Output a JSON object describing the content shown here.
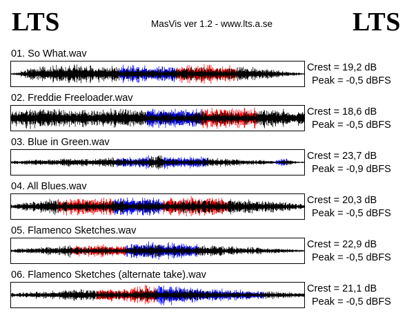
{
  "window": {
    "logo_left": "LTS",
    "logo_right": "LTS",
    "title": "MasVis ver 1.2 - www.lts.a.se"
  },
  "colors": {
    "left_channel": "#0000ff",
    "right_channel": "#ff0000",
    "mono": "#000000"
  },
  "tracks": [
    {
      "title": "01. So What.wav",
      "crest": "Crest = 19,2 dB",
      "peak": "Peak = -0,5 dBFS",
      "envelope": [
        0.08,
        0.12,
        0.2,
        0.3,
        0.4,
        0.5,
        0.55,
        0.6,
        0.65,
        0.7,
        0.72,
        0.75,
        0.78,
        0.8,
        0.82,
        0.85,
        0.86,
        0.85,
        0.84,
        0.82,
        0.8,
        0.78,
        0.75,
        0.72,
        0.7,
        0.68,
        0.7,
        0.72,
        0.74,
        0.76,
        0.78,
        0.8,
        0.82,
        0.83,
        0.82,
        0.8,
        0.78,
        0.76,
        0.74,
        0.72,
        0.72,
        0.74,
        0.76,
        0.78,
        0.8,
        0.82,
        0.84,
        0.86,
        0.88,
        0.9,
        0.92,
        0.93,
        0.92,
        0.9,
        0.88,
        0.85,
        0.82,
        0.8,
        0.78,
        0.75,
        0.72,
        0.7,
        0.68,
        0.65,
        0.62,
        0.58,
        0.55,
        0.52,
        0.5,
        0.46,
        0.42,
        0.38,
        0.34,
        0.3,
        0.26,
        0.22,
        0.18,
        0.15,
        0.12,
        0.08
      ],
      "segments": [
        {
          "from": 0.0,
          "to": 0.37,
          "channel": "mono"
        },
        {
          "from": 0.37,
          "to": 0.56,
          "channel": "left"
        },
        {
          "from": 0.56,
          "to": 0.77,
          "channel": "right"
        },
        {
          "from": 0.77,
          "to": 1.0,
          "channel": "mono"
        }
      ]
    },
    {
      "title": "02. Freddie Freeloader.wav",
      "crest": "Crest = 18,6 dB",
      "peak": "Peak = -0,5 dBFS",
      "envelope": [
        0.6,
        0.7,
        0.78,
        0.82,
        0.85,
        0.88,
        0.9,
        0.9,
        0.88,
        0.86,
        0.85,
        0.84,
        0.83,
        0.82,
        0.82,
        0.8,
        0.8,
        0.8,
        0.78,
        0.78,
        0.78,
        0.76,
        0.78,
        0.8,
        0.8,
        0.8,
        0.82,
        0.84,
        0.85,
        0.86,
        0.86,
        0.86,
        0.85,
        0.84,
        0.84,
        0.84,
        0.85,
        0.86,
        0.87,
        0.88,
        0.88,
        0.88,
        0.86,
        0.85,
        0.84,
        0.85,
        0.86,
        0.88,
        0.9,
        0.92,
        0.94,
        0.95,
        0.95,
        0.95,
        0.94,
        0.94,
        0.94,
        0.93,
        0.93,
        0.93,
        0.92,
        0.92,
        0.92,
        0.9,
        0.9,
        0.88,
        0.88,
        0.87,
        0.86,
        0.85,
        0.84,
        0.82,
        0.8,
        0.78,
        0.76,
        0.74,
        0.72,
        0.7,
        0.68,
        0.66
      ],
      "segments": [
        {
          "from": 0.0,
          "to": 0.46,
          "channel": "mono"
        },
        {
          "from": 0.46,
          "to": 0.65,
          "channel": "left"
        },
        {
          "from": 0.65,
          "to": 0.84,
          "channel": "right"
        },
        {
          "from": 0.84,
          "to": 1.0,
          "channel": "mono"
        }
      ]
    },
    {
      "title": "03. Blue in Green.wav",
      "crest": "Crest = 23,7 dB",
      "peak": "Peak = -0,9 dBFS",
      "envelope": [
        0.12,
        0.15,
        0.18,
        0.2,
        0.22,
        0.25,
        0.28,
        0.3,
        0.3,
        0.32,
        0.3,
        0.28,
        0.3,
        0.32,
        0.35,
        0.38,
        0.4,
        0.42,
        0.4,
        0.38,
        0.36,
        0.35,
        0.34,
        0.36,
        0.38,
        0.4,
        0.44,
        0.48,
        0.5,
        0.52,
        0.5,
        0.48,
        0.46,
        0.45,
        0.48,
        0.52,
        0.55,
        0.58,
        0.6,
        0.62,
        0.6,
        0.58,
        0.55,
        0.52,
        0.5,
        0.48,
        0.5,
        0.52,
        0.54,
        0.55,
        0.52,
        0.5,
        0.48,
        0.46,
        0.44,
        0.42,
        0.4,
        0.38,
        0.36,
        0.34,
        0.32,
        0.3,
        0.28,
        0.27,
        0.26,
        0.25,
        0.24,
        0.23,
        0.22,
        0.2,
        0.18,
        0.16,
        0.22,
        0.35,
        0.4,
        0.25,
        0.14,
        0.12,
        0.1,
        0.08
      ],
      "segments": [
        {
          "from": 0.0,
          "to": 0.36,
          "channel": "mono"
        },
        {
          "from": 0.36,
          "to": 0.47,
          "channel": "left"
        },
        {
          "from": 0.47,
          "to": 0.52,
          "channel": "mono"
        },
        {
          "from": 0.52,
          "to": 0.67,
          "channel": "left"
        },
        {
          "from": 0.67,
          "to": 0.9,
          "channel": "mono"
        },
        {
          "from": 0.9,
          "to": 0.94,
          "channel": "left"
        },
        {
          "from": 0.94,
          "to": 1.0,
          "channel": "mono"
        }
      ]
    },
    {
      "title": "04. All Blues.wav",
      "crest": "Crest = 20,3 dB",
      "peak": "Peak = -0,5 dBFS",
      "envelope": [
        0.2,
        0.25,
        0.3,
        0.35,
        0.38,
        0.4,
        0.45,
        0.5,
        0.55,
        0.6,
        0.65,
        0.68,
        0.7,
        0.72,
        0.74,
        0.76,
        0.78,
        0.8,
        0.82,
        0.8,
        0.78,
        0.76,
        0.74,
        0.76,
        0.78,
        0.8,
        0.82,
        0.84,
        0.86,
        0.88,
        0.88,
        0.86,
        0.84,
        0.82,
        0.8,
        0.82,
        0.84,
        0.86,
        0.85,
        0.84,
        0.82,
        0.8,
        0.78,
        0.8,
        0.82,
        0.84,
        0.86,
        0.88,
        0.9,
        0.92,
        0.92,
        0.9,
        0.88,
        0.86,
        0.84,
        0.82,
        0.8,
        0.78,
        0.76,
        0.74,
        0.72,
        0.7,
        0.68,
        0.66,
        0.64,
        0.62,
        0.6,
        0.58,
        0.56,
        0.54,
        0.52,
        0.5,
        0.48,
        0.45,
        0.42,
        0.38,
        0.34,
        0.3,
        0.25,
        0.2
      ],
      "segments": [
        {
          "from": 0.0,
          "to": 0.16,
          "channel": "mono"
        },
        {
          "from": 0.16,
          "to": 0.35,
          "channel": "right"
        },
        {
          "from": 0.35,
          "to": 0.52,
          "channel": "left"
        },
        {
          "from": 0.52,
          "to": 0.74,
          "channel": "right"
        },
        {
          "from": 0.74,
          "to": 1.0,
          "channel": "mono"
        }
      ]
    },
    {
      "title": "05. Flamenco Sketches.wav",
      "crest": "Crest = 22,9 dB",
      "peak": "Peak = -0,5 dBFS",
      "envelope": [
        0.15,
        0.18,
        0.2,
        0.22,
        0.25,
        0.28,
        0.3,
        0.32,
        0.34,
        0.36,
        0.38,
        0.4,
        0.42,
        0.45,
        0.5,
        0.55,
        0.6,
        0.58,
        0.55,
        0.52,
        0.5,
        0.55,
        0.6,
        0.62,
        0.6,
        0.56,
        0.52,
        0.5,
        0.48,
        0.5,
        0.55,
        0.6,
        0.65,
        0.7,
        0.75,
        0.8,
        0.82,
        0.84,
        0.85,
        0.84,
        0.82,
        0.8,
        0.78,
        0.75,
        0.72,
        0.7,
        0.68,
        0.65,
        0.62,
        0.6,
        0.58,
        0.56,
        0.55,
        0.54,
        0.52,
        0.5,
        0.48,
        0.46,
        0.44,
        0.42,
        0.4,
        0.38,
        0.36,
        0.35,
        0.34,
        0.33,
        0.32,
        0.3,
        0.28,
        0.26,
        0.25,
        0.24,
        0.23,
        0.22,
        0.2,
        0.18,
        0.16,
        0.14,
        0.12,
        0.1
      ],
      "segments": [
        {
          "from": 0.0,
          "to": 0.21,
          "channel": "mono"
        },
        {
          "from": 0.21,
          "to": 0.39,
          "channel": "right"
        },
        {
          "from": 0.39,
          "to": 0.64,
          "channel": "left"
        },
        {
          "from": 0.64,
          "to": 1.0,
          "channel": "mono"
        }
      ]
    },
    {
      "title": "06. Flamenco Sketches (alternate take).wav",
      "crest": "Crest = 21,1 dB",
      "peak": "Peak = -0,5 dBFS",
      "envelope": [
        0.18,
        0.2,
        0.22,
        0.25,
        0.28,
        0.3,
        0.32,
        0.34,
        0.35,
        0.36,
        0.38,
        0.4,
        0.42,
        0.44,
        0.46,
        0.5,
        0.55,
        0.6,
        0.62,
        0.6,
        0.58,
        0.55,
        0.52,
        0.5,
        0.55,
        0.6,
        0.62,
        0.6,
        0.55,
        0.52,
        0.5,
        0.55,
        0.6,
        0.68,
        0.75,
        0.82,
        0.88,
        0.9,
        0.92,
        0.9,
        0.88,
        0.86,
        0.84,
        0.82,
        0.8,
        0.78,
        0.76,
        0.74,
        0.72,
        0.7,
        0.68,
        0.66,
        0.64,
        0.62,
        0.6,
        0.58,
        0.56,
        0.55,
        0.54,
        0.53,
        0.52,
        0.5,
        0.48,
        0.46,
        0.45,
        0.44,
        0.42,
        0.4,
        0.38,
        0.36,
        0.35,
        0.34,
        0.32,
        0.3,
        0.28,
        0.26,
        0.24,
        0.22,
        0.2,
        0.18
      ],
      "segments": [
        {
          "from": 0.0,
          "to": 0.29,
          "channel": "mono"
        },
        {
          "from": 0.29,
          "to": 0.49,
          "channel": "right"
        },
        {
          "from": 0.49,
          "to": 0.86,
          "channel": "left"
        },
        {
          "from": 0.86,
          "to": 1.0,
          "channel": "mono"
        }
      ]
    }
  ]
}
